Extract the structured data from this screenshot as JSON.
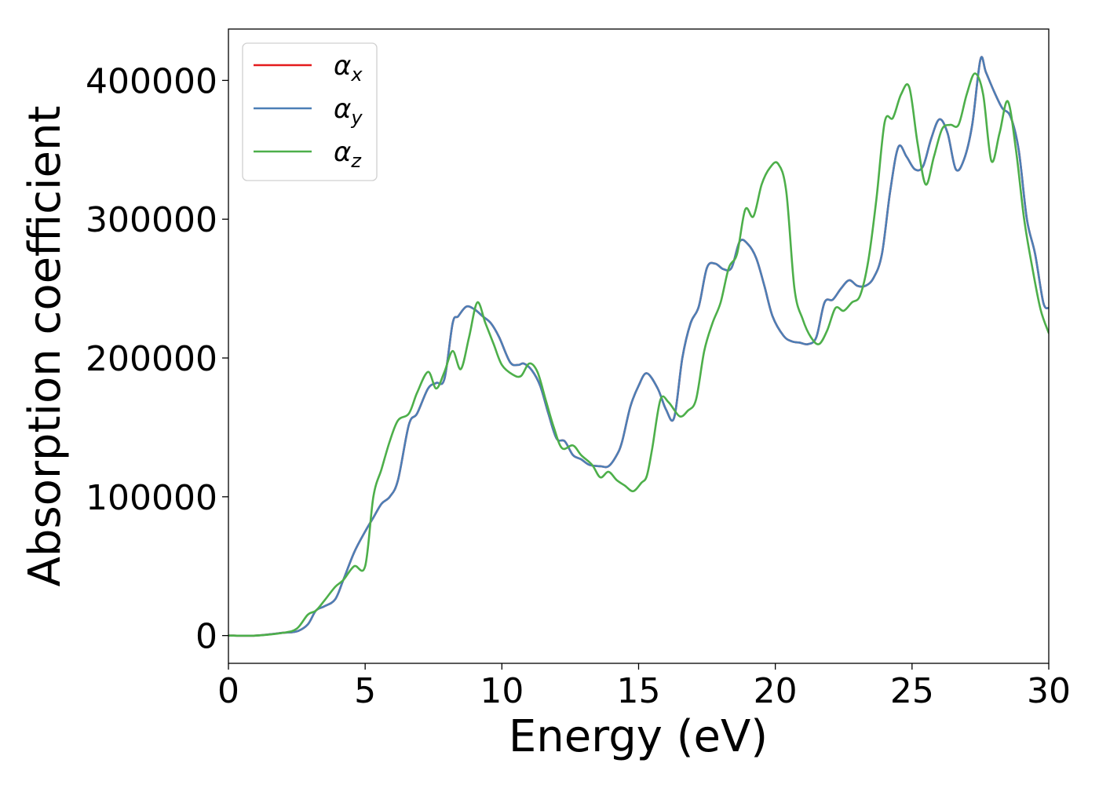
{
  "chart_data": {
    "type": "line",
    "xlabel": "Energy (eV)",
    "ylabel": "Absorption coefficient",
    "xlim": [
      0,
      30
    ],
    "ylim": [
      -20000,
      437000
    ],
    "xticks": [
      0,
      5,
      10,
      15,
      20,
      25,
      30
    ],
    "yticks": [
      0,
      100000,
      200000,
      300000,
      400000
    ],
    "grid": false,
    "legend": {
      "placement": "top-left"
    },
    "series": [
      {
        "name": "α_x",
        "base": "α",
        "sub": "x",
        "color": "#e41a1c",
        "x": [
          0,
          1,
          2,
          2.5,
          2.9,
          3.2,
          3.5,
          3.9,
          4.2,
          4.6,
          5.0,
          5.3,
          5.6,
          5.9,
          6.2,
          6.6,
          6.9,
          7.3,
          7.6,
          7.9,
          8.2,
          8.4,
          8.7,
          9.0,
          9.3,
          9.6,
          9.9,
          10.3,
          10.6,
          10.8,
          11.1,
          11.4,
          11.7,
          12.0,
          12.3,
          12.6,
          12.9,
          13.2,
          13.6,
          13.9,
          14.2,
          14.4,
          14.7,
          15.0,
          15.3,
          15.7,
          16.0,
          16.3,
          16.6,
          16.9,
          17.2,
          17.5,
          17.8,
          18.1,
          18.4,
          18.7,
          19.0,
          19.3,
          19.6,
          19.9,
          20.3,
          20.6,
          20.9,
          21.2,
          21.5,
          21.8,
          22.1,
          22.4,
          22.7,
          23.0,
          23.3,
          23.6,
          23.9,
          24.2,
          24.5,
          24.8,
          25.1,
          25.4,
          25.7,
          26.0,
          26.3,
          26.6,
          26.9,
          27.2,
          27.5,
          27.7,
          28.0,
          28.3,
          28.6,
          28.9,
          29.2,
          29.5,
          29.8,
          30.0
        ],
        "values": [
          0,
          0,
          2000,
          3000,
          8000,
          18000,
          21000,
          26000,
          40000,
          60000,
          75000,
          85000,
          95000,
          100000,
          112000,
          152000,
          160000,
          178000,
          182000,
          185000,
          225000,
          230000,
          237000,
          235000,
          230000,
          225000,
          215000,
          197000,
          195000,
          196000,
          191000,
          180000,
          160000,
          142000,
          140000,
          130000,
          127000,
          123000,
          122000,
          122000,
          130000,
          140000,
          165000,
          180000,
          189000,
          178000,
          163000,
          157000,
          200000,
          225000,
          237000,
          265000,
          268000,
          264000,
          265000,
          284000,
          282000,
          272000,
          252000,
          230000,
          216000,
          212000,
          211000,
          210000,
          215000,
          240000,
          242000,
          250000,
          256000,
          252000,
          252000,
          258000,
          275000,
          320000,
          352000,
          345000,
          336000,
          338000,
          358000,
          372000,
          362000,
          336000,
          343000,
          368000,
          415000,
          406000,
          392000,
          380000,
          374000,
          350000,
          300000,
          275000,
          240000,
          236000
        ]
      },
      {
        "name": "α_y",
        "base": "α",
        "sub": "y",
        "color": "#4c7fb6",
        "x": [
          0,
          1,
          2,
          2.5,
          2.9,
          3.2,
          3.5,
          3.9,
          4.2,
          4.6,
          5.0,
          5.3,
          5.6,
          5.9,
          6.2,
          6.6,
          6.9,
          7.3,
          7.6,
          7.9,
          8.2,
          8.4,
          8.7,
          9.0,
          9.3,
          9.6,
          9.9,
          10.3,
          10.6,
          10.8,
          11.1,
          11.4,
          11.7,
          12.0,
          12.3,
          12.6,
          12.9,
          13.2,
          13.6,
          13.9,
          14.2,
          14.4,
          14.7,
          15.0,
          15.3,
          15.7,
          16.0,
          16.3,
          16.6,
          16.9,
          17.2,
          17.5,
          17.8,
          18.1,
          18.4,
          18.7,
          19.0,
          19.3,
          19.6,
          19.9,
          20.3,
          20.6,
          20.9,
          21.2,
          21.5,
          21.8,
          22.1,
          22.4,
          22.7,
          23.0,
          23.3,
          23.6,
          23.9,
          24.2,
          24.5,
          24.8,
          25.1,
          25.4,
          25.7,
          26.0,
          26.3,
          26.6,
          26.9,
          27.2,
          27.5,
          27.7,
          28.0,
          28.3,
          28.6,
          28.9,
          29.2,
          29.5,
          29.8,
          30.0
        ],
        "values": [
          0,
          0,
          2000,
          3000,
          8000,
          18000,
          21000,
          26000,
          40000,
          60000,
          75000,
          85000,
          95000,
          100000,
          112000,
          152000,
          160000,
          178000,
          182000,
          185000,
          225000,
          230000,
          237000,
          235000,
          230000,
          225000,
          215000,
          197000,
          195000,
          196000,
          191000,
          180000,
          160000,
          142000,
          140000,
          130000,
          127000,
          123000,
          122000,
          122000,
          130000,
          140000,
          165000,
          180000,
          189000,
          178000,
          163000,
          157000,
          200000,
          225000,
          237000,
          265000,
          268000,
          264000,
          265000,
          284000,
          282000,
          272000,
          252000,
          230000,
          216000,
          212000,
          211000,
          210000,
          215000,
          240000,
          242000,
          250000,
          256000,
          252000,
          252000,
          258000,
          275000,
          320000,
          352000,
          345000,
          336000,
          338000,
          358000,
          372000,
          362000,
          336000,
          343000,
          368000,
          415000,
          406000,
          392000,
          380000,
          374000,
          350000,
          300000,
          275000,
          240000,
          236000
        ]
      },
      {
        "name": "α_z",
        "base": "α",
        "sub": "z",
        "color": "#4daf4a",
        "x": [
          0,
          1,
          2,
          2.5,
          2.9,
          3.2,
          3.5,
          3.9,
          4.2,
          4.6,
          5.0,
          5.3,
          5.6,
          5.9,
          6.2,
          6.6,
          6.9,
          7.3,
          7.6,
          7.9,
          8.2,
          8.5,
          8.8,
          9.1,
          9.4,
          9.7,
          10.0,
          10.4,
          10.7,
          11.0,
          11.3,
          11.6,
          11.9,
          12.2,
          12.6,
          12.9,
          13.3,
          13.6,
          13.9,
          14.2,
          14.5,
          14.8,
          15.1,
          15.3,
          15.5,
          15.8,
          16.1,
          16.5,
          16.8,
          17.1,
          17.4,
          17.7,
          18.0,
          18.3,
          18.6,
          18.9,
          19.2,
          19.5,
          19.8,
          20.1,
          20.4,
          20.7,
          21.0,
          21.3,
          21.6,
          21.9,
          22.2,
          22.5,
          22.8,
          23.1,
          23.4,
          23.7,
          24.0,
          24.3,
          24.6,
          24.9,
          25.2,
          25.5,
          25.8,
          26.1,
          26.4,
          26.7,
          27.0,
          27.3,
          27.6,
          27.9,
          28.2,
          28.5,
          28.8,
          29.1,
          29.4,
          29.7,
          30.0
        ],
        "values": [
          0,
          0,
          2000,
          5000,
          15000,
          18000,
          25000,
          35000,
          40000,
          50000,
          50000,
          100000,
          120000,
          140000,
          155000,
          160000,
          175000,
          190000,
          178000,
          190000,
          205000,
          192000,
          215000,
          240000,
          225000,
          210000,
          195000,
          188000,
          187000,
          196000,
          190000,
          170000,
          150000,
          135000,
          137000,
          130000,
          123000,
          114000,
          118000,
          112000,
          108000,
          104000,
          110000,
          115000,
          135000,
          170000,
          168000,
          158000,
          162000,
          170000,
          205000,
          225000,
          240000,
          265000,
          275000,
          307000,
          302000,
          325000,
          337000,
          340000,
          320000,
          250000,
          228000,
          215000,
          210000,
          220000,
          236000,
          234000,
          240000,
          245000,
          270000,
          315000,
          370000,
          373000,
          390000,
          395000,
          355000,
          325000,
          345000,
          365000,
          368000,
          368000,
          390000,
          405000,
          390000,
          342000,
          362000,
          385000,
          350000,
          300000,
          265000,
          235000,
          218000
        ]
      }
    ]
  }
}
